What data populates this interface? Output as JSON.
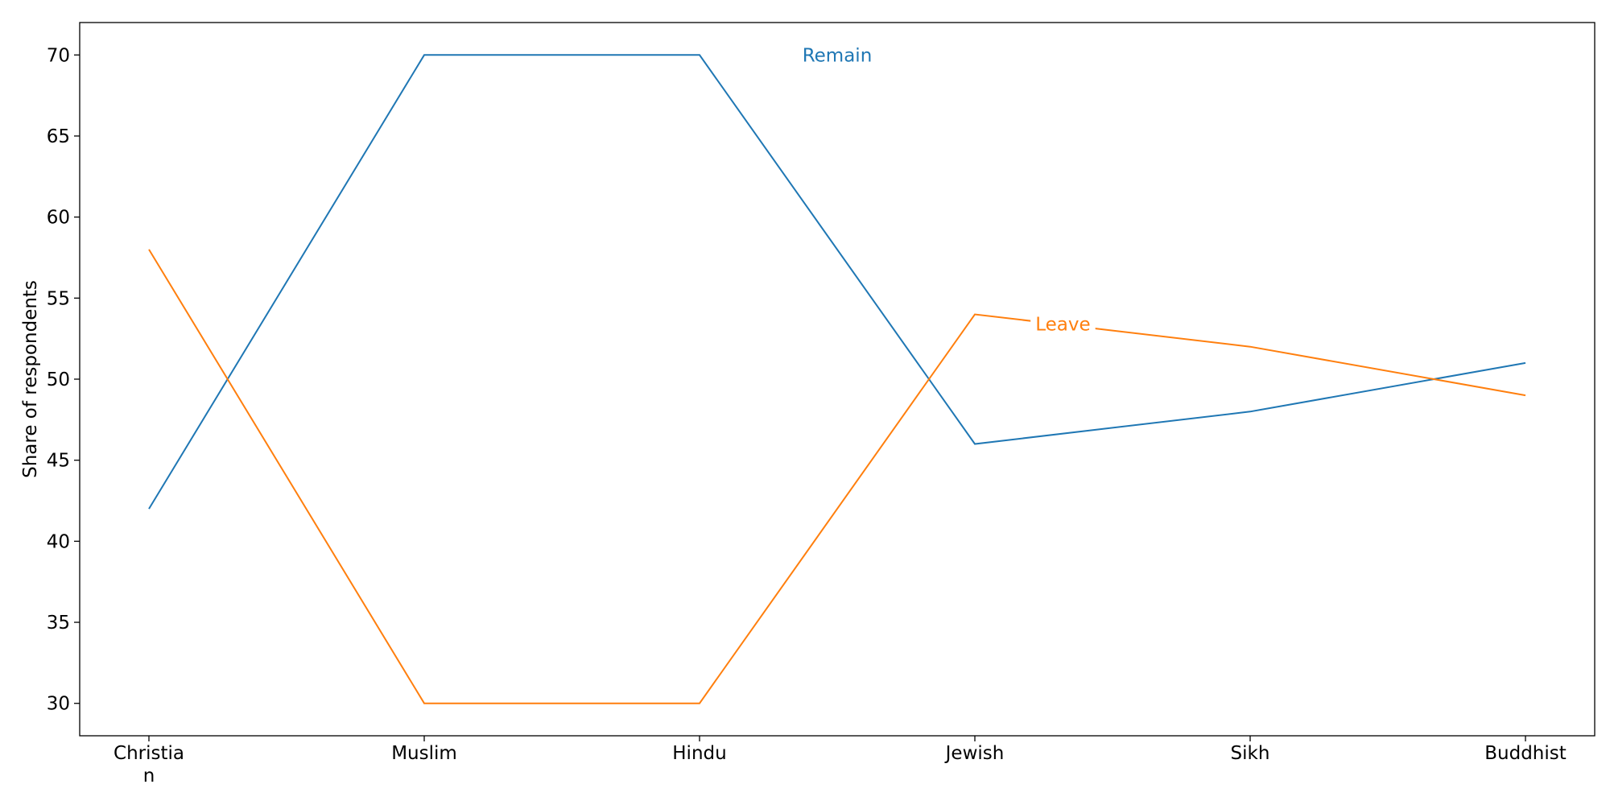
{
  "chart_data": {
    "type": "line",
    "title": "",
    "xlabel": "",
    "ylabel": "Share of respondents",
    "categories": [
      [
        "Christia",
        "n"
      ],
      [
        "Muslim"
      ],
      [
        "Hindu"
      ],
      [
        "Jewish"
      ],
      [
        "Sikh"
      ],
      [
        "Buddhist"
      ]
    ],
    "ylim": [
      28,
      72
    ],
    "yticks": [
      30,
      35,
      40,
      45,
      50,
      55,
      60,
      65,
      70
    ],
    "grid": false,
    "legend": "none",
    "series": [
      {
        "name": "Remain",
        "color": "#1f77b4",
        "values": [
          42,
          70,
          70,
          46,
          48,
          51
        ],
        "label_at": 2.5,
        "label_value": 70
      },
      {
        "name": "Leave",
        "color": "#ff7f0e",
        "values": [
          58,
          30,
          30,
          54,
          52,
          49
        ],
        "label_at": 3.32,
        "label_value": 53.4
      }
    ]
  }
}
